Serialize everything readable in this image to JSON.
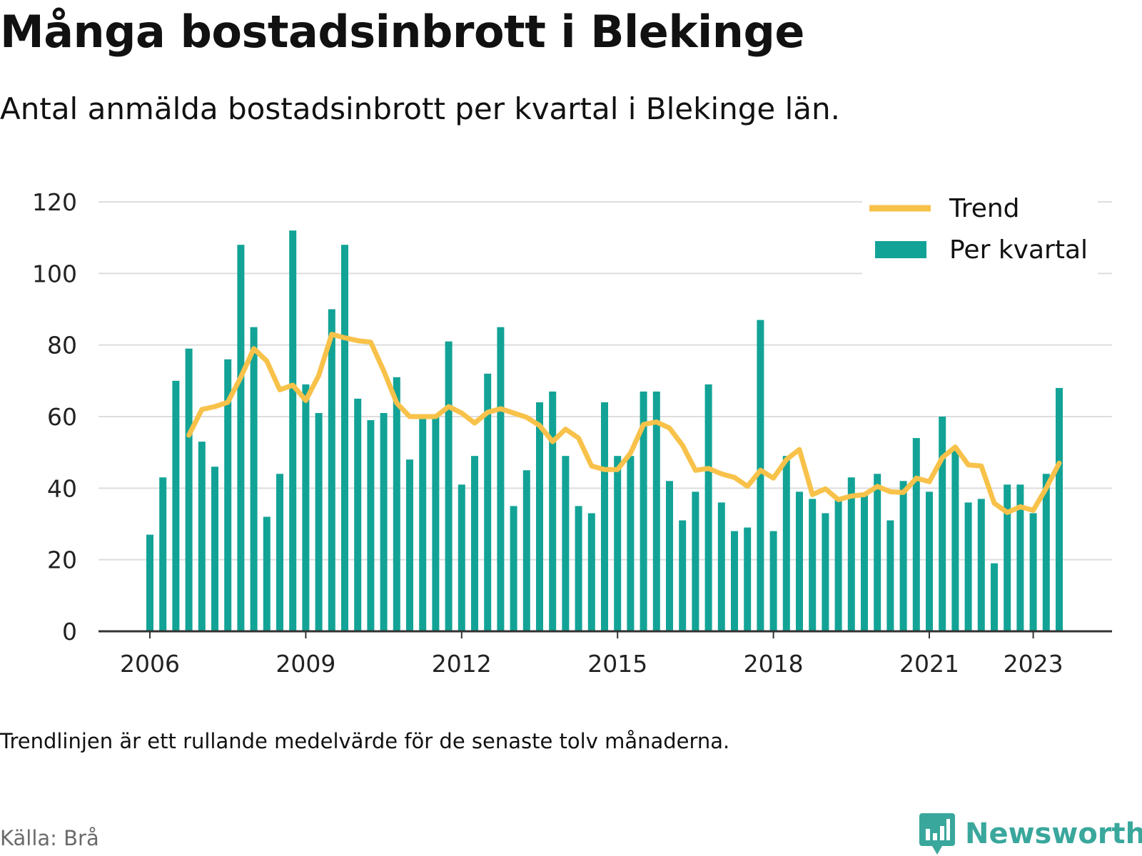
{
  "title": "Många bostadsinbrott i Blekinge",
  "subtitle": "Antal anmälda bostadsinbrott per kvartal i Blekinge län.",
  "note": "Trendlinjen är ett rullande medelvärde för de senaste tolv månaderna.",
  "source": "Källa: Brå",
  "brand": {
    "name": "Newsworthy",
    "icon": "newsworthy-logo-icon",
    "color": "#3aa79c"
  },
  "colors": {
    "bars": "#12a396",
    "trend": "#f8c24a",
    "grid": "#dddddd",
    "axis": "#333333"
  },
  "chart_data": {
    "type": "bar",
    "x_unit": "quarter",
    "ylim": [
      0,
      120
    ],
    "yticks": [
      0,
      20,
      40,
      60,
      80,
      100,
      120
    ],
    "xticks": [
      "2006",
      "2009",
      "2012",
      "2015",
      "2018",
      "2021",
      "2023"
    ],
    "grid": true,
    "legend_position": "top-right",
    "legend": [
      "Trend",
      "Per kvartal"
    ],
    "categories": [
      "2006 Q1",
      "2006 Q2",
      "2006 Q3",
      "2006 Q4",
      "2007 Q1",
      "2007 Q2",
      "2007 Q3",
      "2007 Q4",
      "2008 Q1",
      "2008 Q2",
      "2008 Q3",
      "2008 Q4",
      "2009 Q1",
      "2009 Q2",
      "2009 Q3",
      "2009 Q4",
      "2010 Q1",
      "2010 Q2",
      "2010 Q3",
      "2010 Q4",
      "2011 Q1",
      "2011 Q2",
      "2011 Q3",
      "2011 Q4",
      "2012 Q1",
      "2012 Q2",
      "2012 Q3",
      "2012 Q4",
      "2013 Q1",
      "2013 Q2",
      "2013 Q3",
      "2013 Q4",
      "2014 Q1",
      "2014 Q2",
      "2014 Q3",
      "2014 Q4",
      "2015 Q1",
      "2015 Q2",
      "2015 Q3",
      "2015 Q4",
      "2016 Q1",
      "2016 Q2",
      "2016 Q3",
      "2016 Q4",
      "2017 Q1",
      "2017 Q2",
      "2017 Q3",
      "2017 Q4",
      "2018 Q1",
      "2018 Q2",
      "2018 Q3",
      "2018 Q4",
      "2019 Q1",
      "2019 Q2",
      "2019 Q3",
      "2019 Q4",
      "2020 Q1",
      "2020 Q2",
      "2020 Q3",
      "2020 Q4",
      "2021 Q1",
      "2021 Q2",
      "2021 Q3",
      "2021 Q4",
      "2022 Q1",
      "2022 Q2",
      "2022 Q3",
      "2022 Q4",
      "2023 Q1",
      "2023 Q2",
      "2023 Q3"
    ],
    "series": [
      {
        "name": "Per kvartal",
        "type": "bar",
        "values": [
          27,
          43,
          70,
          79,
          53,
          46,
          76,
          108,
          85,
          32,
          44,
          112,
          69,
          61,
          90,
          108,
          65,
          59,
          61,
          71,
          48,
          60,
          60,
          81,
          41,
          49,
          72,
          85,
          35,
          45,
          64,
          67,
          49,
          35,
          33,
          64,
          49,
          49,
          67,
          67,
          42,
          31,
          39,
          69,
          36,
          28,
          29,
          87,
          28,
          49,
          39,
          37,
          33,
          37,
          43,
          38,
          44,
          31,
          42,
          54,
          39,
          60,
          51,
          36,
          37,
          19,
          41,
          41,
          33,
          44,
          68
        ]
      },
      {
        "name": "Trend",
        "type": "line",
        "values": [
          null,
          null,
          null,
          54.8,
          62.0,
          62.8,
          64.0,
          71.0,
          79.0,
          75.5,
          67.5,
          68.8,
          64.5,
          71.5,
          83.0,
          82.0,
          81.2,
          80.8,
          72.8,
          63.8,
          60.0,
          60.0,
          60.0,
          62.8,
          61.0,
          58.2,
          61.2,
          62.2,
          61.0,
          59.8,
          57.5,
          53.0,
          56.5,
          54.0,
          46.2,
          45.2,
          45.2,
          49.8,
          57.8,
          58.5,
          56.8,
          52.0,
          45.0,
          45.5,
          44.0,
          43.0,
          40.5,
          45.0,
          42.8,
          48.0,
          50.8,
          38.2,
          39.8,
          36.8,
          37.8,
          38.2,
          40.5,
          39.0,
          38.8,
          42.8,
          41.8,
          48.5,
          51.5,
          46.5,
          46.2,
          35.8,
          33.2,
          34.8,
          33.8,
          40.0,
          47.0
        ]
      }
    ]
  }
}
